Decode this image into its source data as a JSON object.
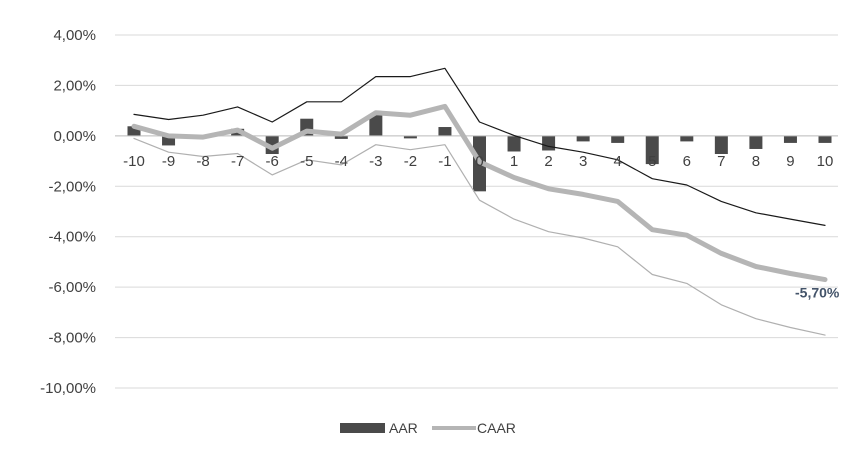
{
  "chart_data": {
    "type": "bar+line",
    "x": [
      -10,
      -9,
      -8,
      -7,
      -6,
      -5,
      -4,
      -3,
      -2,
      -1,
      0,
      1,
      2,
      3,
      4,
      5,
      6,
      7,
      8,
      9,
      10
    ],
    "x_tick_labels": [
      "-10",
      "-9",
      "-8",
      "-7",
      "-6",
      "-5",
      "-4",
      "-3",
      "-2",
      "-1",
      "0",
      "1",
      "2",
      "3",
      "4",
      "5",
      "6",
      "7",
      "8",
      "9",
      "10"
    ],
    "y_tick_labels": [
      "4,00%",
      "2,00%",
      "0,00%",
      "-2,00%",
      "-4,00%",
      "-6,00%",
      "-8,00%",
      "-10,00%"
    ],
    "ylim": [
      -10,
      4
    ],
    "y_unit": "%",
    "grid": "horizontal",
    "legend_position": "bottom",
    "series": [
      {
        "name": "AAR",
        "kind": "bar",
        "color": "#4a4a4a",
        "values": [
          0.38,
          -0.38,
          -0.05,
          0.28,
          -0.72,
          0.68,
          -0.12,
          0.85,
          -0.1,
          0.35,
          -2.2,
          -0.62,
          -0.58,
          -0.22,
          -0.28,
          -1.12,
          -0.22,
          -0.72,
          -0.52,
          -0.28,
          -0.28
        ]
      },
      {
        "name": "CAAR",
        "kind": "line",
        "color": "#b5b5b5",
        "values": [
          0.38,
          0.0,
          -0.05,
          0.23,
          -0.49,
          0.19,
          0.07,
          0.92,
          0.82,
          1.17,
          -1.03,
          -1.65,
          -2.1,
          -2.32,
          -2.6,
          -3.72,
          -3.94,
          -4.66,
          -5.18,
          -5.46,
          -5.7
        ]
      },
      {
        "kind": "line",
        "color": "#1a1a1a",
        "values": [
          0.85,
          0.65,
          0.82,
          1.15,
          0.55,
          1.35,
          1.35,
          2.35,
          2.35,
          2.68,
          0.55,
          0.02,
          -0.42,
          -0.65,
          -0.95,
          -1.7,
          -1.95,
          -2.6,
          -3.05,
          -3.3,
          -3.55
        ]
      },
      {
        "kind": "line",
        "color": "#b0b0b0",
        "values": [
          -0.1,
          -0.65,
          -0.82,
          -0.7,
          -1.55,
          -0.95,
          -1.15,
          -0.35,
          -0.55,
          -0.35,
          -2.55,
          -3.3,
          -3.8,
          -4.05,
          -4.4,
          -5.5,
          -5.85,
          -6.7,
          -7.25,
          -7.6,
          -7.9
        ]
      }
    ],
    "annotations": [
      {
        "text": "-5,70%",
        "x": 10,
        "y": -5.7,
        "series": "CAAR"
      }
    ],
    "legend": [
      {
        "label": "AAR",
        "color": "#4a4a4a",
        "kind": "bar"
      },
      {
        "label": "CAAR",
        "color": "#b5b5b5",
        "kind": "line"
      }
    ]
  }
}
